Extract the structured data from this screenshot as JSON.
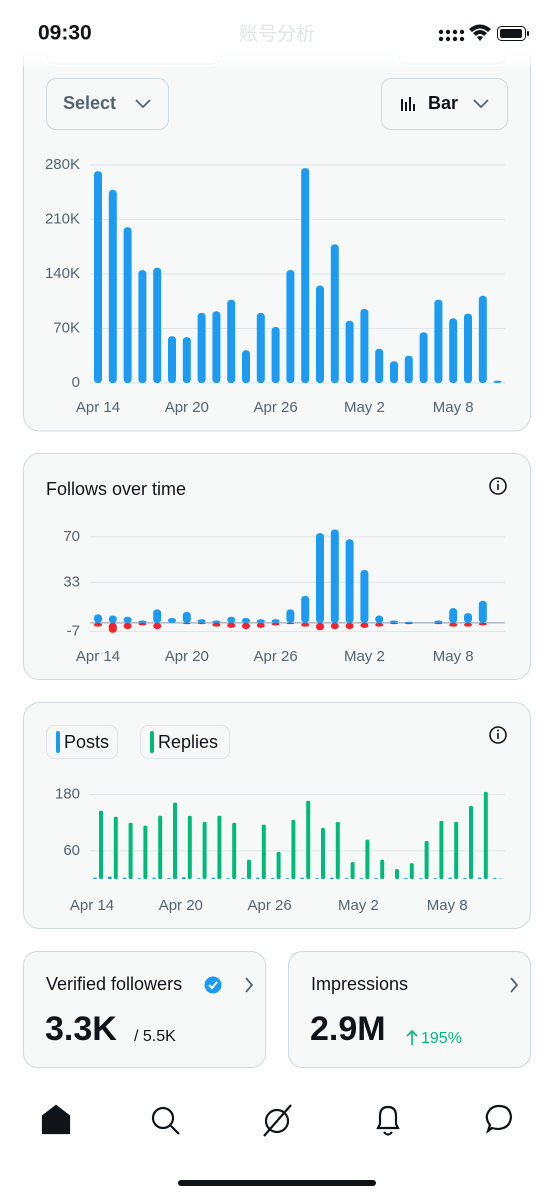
{
  "status_bar": {
    "time": "09:30"
  },
  "header": {
    "title": "账号分析"
  },
  "controls": {
    "filter": "Select",
    "chart_type": "Bar"
  },
  "chart_data": [
    {
      "type": "bar",
      "categories": [
        "Apr 14",
        null,
        null,
        null,
        null,
        null,
        "Apr 20",
        null,
        null,
        null,
        null,
        null,
        "Apr 26",
        null,
        null,
        null,
        null,
        null,
        "May 2",
        null,
        null,
        null,
        null,
        null,
        "May 8",
        null,
        null,
        null
      ],
      "values": [
        272000,
        248000,
        200000,
        145000,
        148000,
        60000,
        59000,
        90000,
        92000,
        107000,
        42000,
        90000,
        72000,
        145000,
        276000,
        125000,
        178000,
        80000,
        95000,
        44000,
        28000,
        35000,
        65000,
        107000,
        83000,
        89000,
        112000,
        3000
      ],
      "color": "#1d9bf0",
      "ylim": [
        0,
        280000
      ],
      "yticks": [
        0,
        {
          "value": 70000,
          "label": "70K"
        },
        {
          "value": 140000,
          "label": "140K"
        },
        {
          "value": 210000,
          "label": "210K"
        },
        {
          "value": 280000,
          "label": "280K"
        }
      ],
      "grid": true
    },
    {
      "type": "bar",
      "title": "Follows over time",
      "categories": [
        "Apr 14",
        null,
        null,
        null,
        null,
        null,
        "Apr 20",
        null,
        null,
        null,
        null,
        null,
        "Apr 26",
        null,
        null,
        null,
        null,
        null,
        "May 2",
        null,
        null,
        null,
        null,
        null,
        "May 8",
        null,
        null
      ],
      "series": [
        {
          "color": "#1d9bf0",
          "values": [
            7,
            6,
            5,
            2,
            11,
            4,
            9,
            3,
            2,
            5,
            4,
            3,
            3,
            11,
            22,
            73,
            76,
            68,
            43,
            6,
            2,
            1,
            0,
            2,
            12,
            8,
            18
          ]
        },
        {
          "color": "#f4212e",
          "values": [
            -3,
            -8,
            -5,
            -2,
            -5,
            0,
            -1,
            -1,
            -3,
            -4,
            -5,
            -4,
            -2,
            -1,
            -3,
            -6,
            -5,
            -5,
            -4,
            -3,
            -1,
            -1,
            0,
            -1,
            -3,
            -3,
            -2
          ]
        }
      ],
      "ylim": [
        -9,
        78
      ],
      "yticks": [
        -7,
        33,
        70
      ],
      "grid": true
    },
    {
      "type": "bar",
      "categories": [
        "Apr 14",
        null,
        null,
        null,
        null,
        null,
        "Apr 20",
        null,
        null,
        null,
        null,
        null,
        "Apr 26",
        null,
        null,
        null,
        null,
        null,
        "May 2",
        null,
        null,
        null,
        null,
        null,
        "May 8",
        null,
        null,
        null
      ],
      "series": [
        {
          "name": "Posts",
          "color": "#1d9bf0",
          "values": [
            3,
            5,
            3,
            2,
            3,
            2,
            4,
            2,
            3,
            2,
            2,
            3,
            2,
            2,
            3,
            2,
            3,
            2,
            2,
            2,
            0,
            2,
            2,
            2,
            3,
            2,
            3,
            2
          ]
        },
        {
          "name": "Replies",
          "color": "#00ba7c",
          "values": [
            146,
            133,
            120,
            114,
            135,
            163,
            135,
            122,
            135,
            120,
            41,
            116,
            58,
            126,
            167,
            109,
            122,
            36,
            84,
            41,
            21,
            34,
            81,
            124,
            122,
            156,
            186,
            1
          ]
        }
      ],
      "ylim": [
        0,
        190
      ],
      "yticks": [
        60,
        180
      ],
      "grid": true
    }
  ],
  "cards": [
    {
      "title": "Verified followers",
      "value": "3.3K",
      "total": "/ 5.5K"
    },
    {
      "title": "Impressions",
      "value": "2.9M",
      "change": "195%"
    }
  ]
}
